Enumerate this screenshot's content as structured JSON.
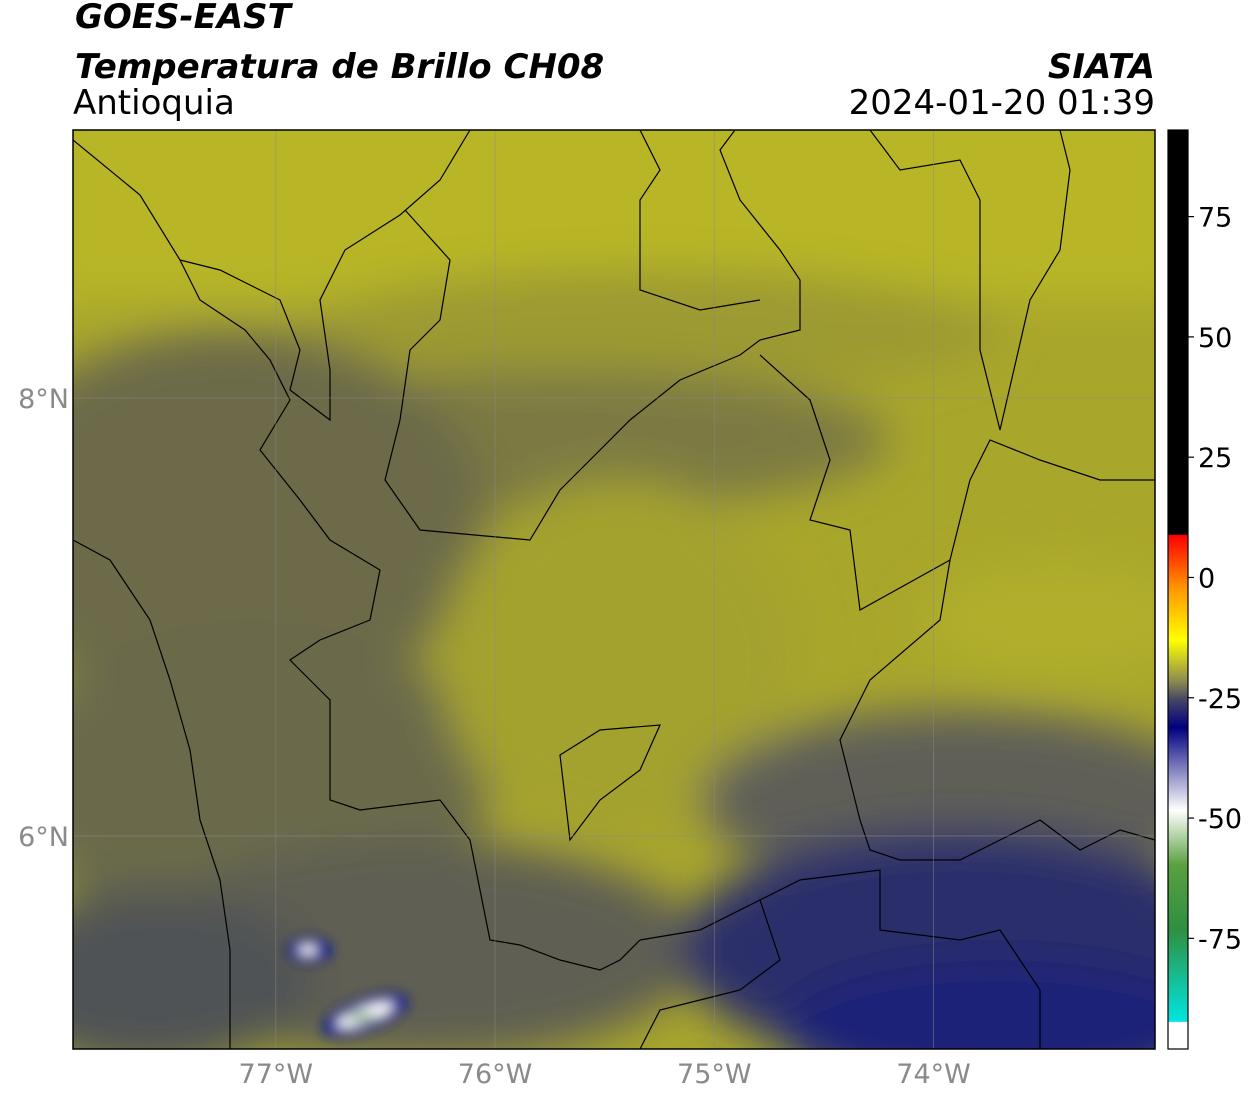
{
  "header": {
    "title": "GOES-EAST",
    "subtitle": "Temperatura de Brillo CH08",
    "region": "Antioquia",
    "source": "SIATA",
    "timestamp": "2024-01-20 01:39"
  },
  "map": {
    "lon_range": [
      -77.925,
      -72.99
    ],
    "lat_range": [
      5.027,
      9.224
    ],
    "lon_ticks": [
      {
        "value": -77,
        "label": "77°W"
      },
      {
        "value": -76,
        "label": "76°W"
      },
      {
        "value": -75,
        "label": "75°W"
      },
      {
        "value": -74,
        "label": "74°W"
      }
    ],
    "lat_ticks": [
      {
        "value": 8,
        "label": "8°N"
      },
      {
        "value": 6,
        "label": "6°N"
      }
    ]
  },
  "colorbar": {
    "range": [
      -98,
      93
    ],
    "ticks": [
      75,
      50,
      25,
      0,
      -25,
      -50,
      -75
    ]
  }
}
